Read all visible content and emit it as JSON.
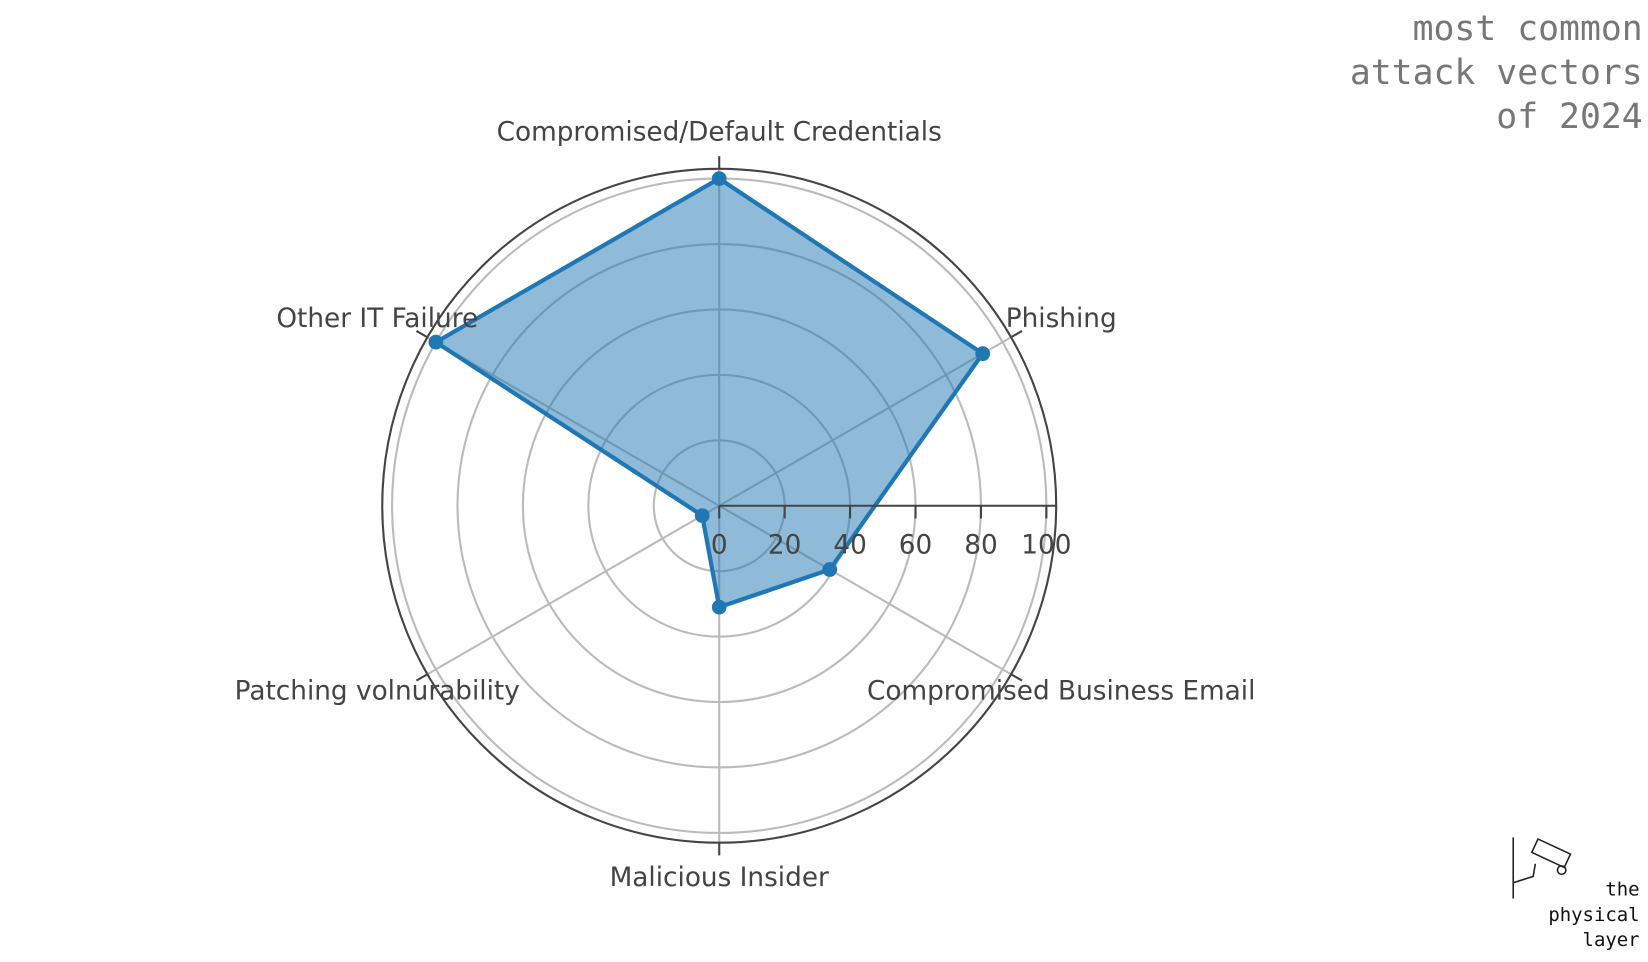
{
  "chart_data": {
    "type": "radar",
    "title": [
      "most common",
      "attack vectors",
      "of 2024"
    ],
    "categories": [
      "Compromised/Default Credentials",
      "Phishing",
      "Compromised Business Email",
      "Malicious Insider",
      "Patching volnurability",
      "Other IT Failure"
    ],
    "values": [
      100,
      93,
      39,
      31,
      6,
      100
    ],
    "color": "#1f77b4",
    "rlim": [
      0,
      103
    ],
    "rticks": [
      0,
      20,
      40,
      60,
      80,
      100
    ],
    "grid": true
  },
  "logo": {
    "lines": [
      "the",
      "physical",
      "layer"
    ]
  }
}
